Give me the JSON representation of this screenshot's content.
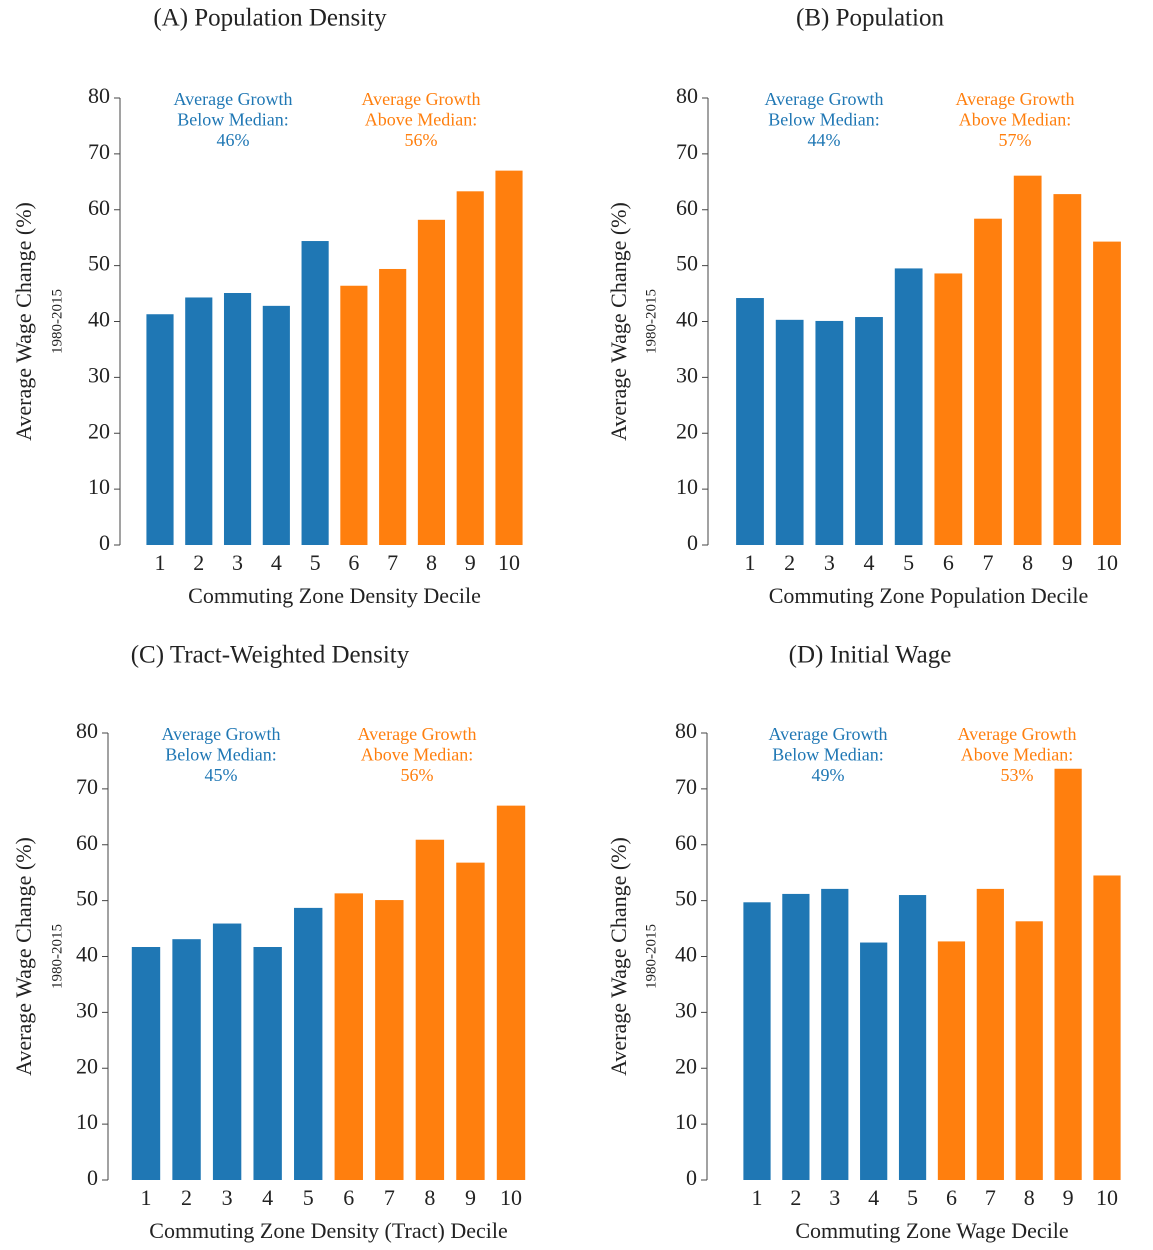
{
  "chart_data": [
    {
      "type": "bar",
      "title": "(A) Population Density",
      "ylabel": "Average Wage Change (%)",
      "ylabel_sub": "1980-2015",
      "xlabel": "Commuting Zone Density Decile",
      "categories": [
        "1",
        "2",
        "3",
        "4",
        "5",
        "6",
        "7",
        "8",
        "9",
        "10"
      ],
      "values": [
        41.3,
        44.3,
        45.1,
        42.8,
        54.4,
        46.4,
        49.4,
        58.2,
        63.3,
        67.0
      ],
      "colors": [
        "#1f77b4",
        "#1f77b4",
        "#1f77b4",
        "#1f77b4",
        "#1f77b4",
        "#ff7f0e",
        "#ff7f0e",
        "#ff7f0e",
        "#ff7f0e",
        "#ff7f0e"
      ],
      "ylim": [
        0,
        80
      ],
      "yticks": [
        0,
        10,
        20,
        30,
        40,
        50,
        60,
        70,
        80
      ],
      "annotations": [
        {
          "lines": [
            "Average Growth",
            "Below Median:",
            "46%"
          ],
          "color": "#1f77b4"
        },
        {
          "lines": [
            "Average Growth",
            "Above Median:",
            "56%"
          ],
          "color": "#ff7f0e"
        }
      ]
    },
    {
      "type": "bar",
      "title": "(B) Population",
      "ylabel": "Average Wage Change (%)",
      "ylabel_sub": "1980-2015",
      "xlabel": "Commuting Zone Population Decile",
      "categories": [
        "1",
        "2",
        "3",
        "4",
        "5",
        "6",
        "7",
        "8",
        "9",
        "10"
      ],
      "values": [
        44.2,
        40.3,
        40.1,
        40.8,
        49.5,
        48.6,
        58.4,
        66.1,
        62.8,
        54.3
      ],
      "colors": [
        "#1f77b4",
        "#1f77b4",
        "#1f77b4",
        "#1f77b4",
        "#1f77b4",
        "#ff7f0e",
        "#ff7f0e",
        "#ff7f0e",
        "#ff7f0e",
        "#ff7f0e"
      ],
      "ylim": [
        0,
        80
      ],
      "yticks": [
        0,
        10,
        20,
        30,
        40,
        50,
        60,
        70,
        80
      ],
      "annotations": [
        {
          "lines": [
            "Average Growth",
            "Below Median:",
            "44%"
          ],
          "color": "#1f77b4"
        },
        {
          "lines": [
            "Average Growth",
            "Above Median:",
            "57%"
          ],
          "color": "#ff7f0e"
        }
      ]
    },
    {
      "type": "bar",
      "title": "(C) Tract-Weighted Density",
      "ylabel": "Average Wage Change (%)",
      "ylabel_sub": "1980-2015",
      "xlabel": "Commuting Zone Density (Tract) Decile",
      "categories": [
        "1",
        "2",
        "3",
        "4",
        "5",
        "6",
        "7",
        "8",
        "9",
        "10"
      ],
      "values": [
        41.7,
        43.1,
        45.9,
        41.7,
        48.7,
        51.3,
        50.1,
        60.9,
        56.8,
        67.0
      ],
      "colors": [
        "#1f77b4",
        "#1f77b4",
        "#1f77b4",
        "#1f77b4",
        "#1f77b4",
        "#ff7f0e",
        "#ff7f0e",
        "#ff7f0e",
        "#ff7f0e",
        "#ff7f0e"
      ],
      "ylim": [
        0,
        80
      ],
      "yticks": [
        0,
        10,
        20,
        30,
        40,
        50,
        60,
        70,
        80
      ],
      "annotations": [
        {
          "lines": [
            "Average Growth",
            "Below Median:",
            "45%"
          ],
          "color": "#1f77b4"
        },
        {
          "lines": [
            "Average Growth",
            "Above Median:",
            "56%"
          ],
          "color": "#ff7f0e"
        }
      ]
    },
    {
      "type": "bar",
      "title": "(D) Initial Wage",
      "ylabel": "Average Wage Change (%)",
      "ylabel_sub": "1980-2015",
      "xlabel": "Commuting Zone Wage Decile",
      "categories": [
        "1",
        "2",
        "3",
        "4",
        "5",
        "6",
        "7",
        "8",
        "9",
        "10"
      ],
      "values": [
        49.7,
        51.2,
        52.1,
        42.5,
        51.0,
        42.7,
        52.1,
        46.3,
        73.6,
        54.5
      ],
      "colors": [
        "#1f77b4",
        "#1f77b4",
        "#1f77b4",
        "#1f77b4",
        "#1f77b4",
        "#ff7f0e",
        "#ff7f0e",
        "#ff7f0e",
        "#ff7f0e",
        "#ff7f0e"
      ],
      "ylim": [
        0,
        80
      ],
      "yticks": [
        0,
        10,
        20,
        30,
        40,
        50,
        60,
        70,
        80
      ],
      "annotations": [
        {
          "lines": [
            "Average Growth",
            "Below Median:",
            "49%"
          ],
          "color": "#1f77b4"
        },
        {
          "lines": [
            "Average Growth",
            "Above Median:",
            "53%"
          ],
          "color": "#ff7f0e"
        }
      ]
    }
  ]
}
